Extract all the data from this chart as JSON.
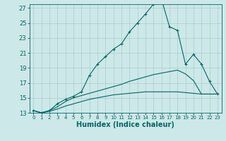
{
  "title": "",
  "xlabel": "Humidex (Indice chaleur)",
  "background_color": "#cce8e8",
  "grid_color": "#aacccc",
  "line_color": "#006666",
  "ylim": [
    13,
    27.5
  ],
  "xlim": [
    -0.5,
    23.5
  ],
  "yticks": [
    13,
    15,
    17,
    19,
    21,
    23,
    25,
    27
  ],
  "xticks": [
    0,
    1,
    2,
    3,
    4,
    5,
    6,
    7,
    8,
    9,
    10,
    11,
    12,
    13,
    14,
    15,
    16,
    17,
    18,
    19,
    20,
    21,
    22,
    23
  ],
  "line1_x": [
    0,
    1,
    2,
    3,
    4,
    5,
    6,
    7,
    8,
    9,
    10,
    11,
    12,
    13,
    14,
    15,
    16,
    17,
    18,
    19,
    20,
    21,
    22,
    23
  ],
  "line1_y": [
    13.3,
    13.0,
    13.3,
    14.2,
    14.8,
    15.2,
    15.8,
    18.0,
    19.5,
    20.5,
    21.5,
    22.2,
    23.8,
    25.0,
    26.2,
    27.5,
    28.2,
    24.5,
    24.0,
    19.5,
    20.8,
    19.5,
    17.2,
    15.5
  ],
  "line2_x": [
    0,
    1,
    2,
    3,
    4,
    5,
    6,
    7,
    8,
    9,
    10,
    11,
    12,
    13,
    14,
    15,
    16,
    17,
    18,
    19,
    20,
    21,
    22,
    23
  ],
  "line2_y": [
    13.3,
    13.0,
    13.3,
    13.8,
    14.5,
    15.0,
    15.3,
    15.6,
    15.9,
    16.2,
    16.5,
    16.8,
    17.2,
    17.5,
    17.8,
    18.1,
    18.3,
    18.5,
    18.7,
    18.2,
    17.3,
    15.5,
    15.5,
    15.5
  ],
  "line3_x": [
    0,
    1,
    2,
    3,
    4,
    5,
    6,
    7,
    8,
    9,
    10,
    11,
    12,
    13,
    14,
    15,
    16,
    17,
    18,
    19,
    20,
    21,
    22,
    23
  ],
  "line3_y": [
    13.3,
    13.0,
    13.2,
    13.5,
    13.9,
    14.2,
    14.5,
    14.8,
    15.0,
    15.2,
    15.4,
    15.5,
    15.6,
    15.7,
    15.8,
    15.8,
    15.8,
    15.8,
    15.8,
    15.7,
    15.6,
    15.5,
    15.5,
    15.5
  ],
  "ytick_fontsize": 6,
  "xtick_fontsize": 5,
  "xlabel_fontsize": 7
}
